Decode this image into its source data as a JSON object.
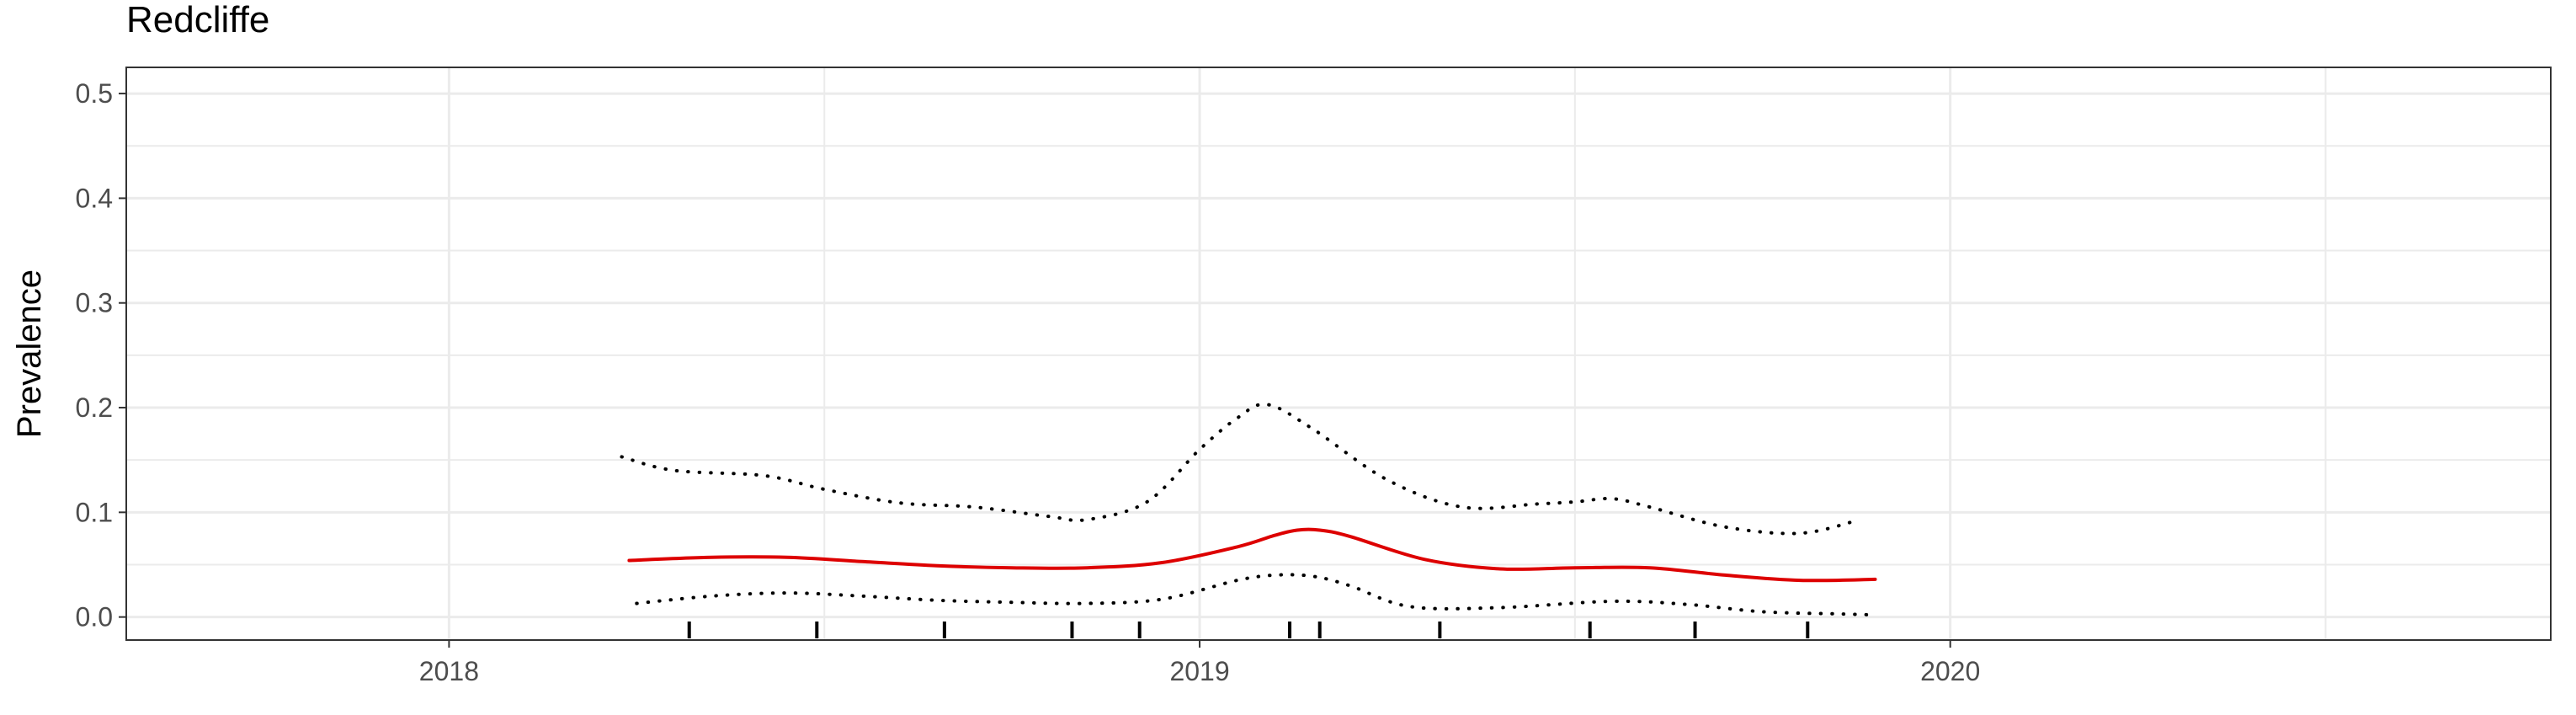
{
  "chart_data": {
    "type": "line",
    "title": "Redcliffe",
    "xlabel": "",
    "ylabel": "Prevalence",
    "xlim": [
      2017.57,
      2020.8
    ],
    "ylim": [
      -0.022,
      0.525
    ],
    "x_ticks": [
      2018,
      2019,
      2020
    ],
    "x_tick_labels": [
      "2018",
      "2019",
      "2020"
    ],
    "y_ticks": [
      0.0,
      0.1,
      0.2,
      0.3,
      0.4,
      0.5
    ],
    "y_tick_labels": [
      "0.0",
      "0.1",
      "0.2",
      "0.3",
      "0.4",
      "0.5"
    ],
    "grid": true,
    "legend": "none",
    "colors": {
      "estimate": "#dd0000",
      "interval": "#000000",
      "grid": "#ebebeb",
      "panel_border": "#333333"
    },
    "series": [
      {
        "role": "estimate",
        "style": "solid",
        "x": [
          2018.24,
          2018.35,
          2018.45,
          2018.55,
          2018.65,
          2018.75,
          2018.85,
          2018.95,
          2019.05,
          2019.1,
          2019.13,
          2019.16,
          2019.2,
          2019.3,
          2019.4,
          2019.5,
          2019.6,
          2019.7,
          2019.8,
          2019.9
        ],
        "y": [
          0.054,
          0.057,
          0.057,
          0.053,
          0.049,
          0.047,
          0.047,
          0.052,
          0.067,
          0.078,
          0.083,
          0.083,
          0.077,
          0.055,
          0.046,
          0.047,
          0.047,
          0.04,
          0.035,
          0.036
        ]
      },
      {
        "role": "upper",
        "style": "dotted",
        "x": [
          2018.23,
          2018.3,
          2018.42,
          2018.5,
          2018.6,
          2018.7,
          2018.8,
          2018.85,
          2018.93,
          2019.0,
          2019.05,
          2019.09,
          2019.15,
          2019.25,
          2019.35,
          2019.45,
          2019.5,
          2019.55,
          2019.6,
          2019.7,
          2019.8,
          2019.88
        ],
        "y": [
          0.153,
          0.14,
          0.135,
          0.122,
          0.109,
          0.105,
          0.096,
          0.093,
          0.11,
          0.16,
          0.19,
          0.203,
          0.18,
          0.131,
          0.105,
          0.108,
          0.11,
          0.113,
          0.105,
          0.086,
          0.08,
          0.093
        ]
      },
      {
        "role": "lower",
        "style": "dotted",
        "x": [
          2018.25,
          2018.35,
          2018.45,
          2018.55,
          2018.65,
          2018.75,
          2018.85,
          2018.95,
          2019.05,
          2019.1,
          2019.15,
          2019.2,
          2019.28,
          2019.4,
          2019.55,
          2019.65,
          2019.75,
          2019.85,
          2019.9
        ],
        "y": [
          0.013,
          0.02,
          0.023,
          0.02,
          0.016,
          0.014,
          0.013,
          0.017,
          0.035,
          0.04,
          0.039,
          0.03,
          0.01,
          0.009,
          0.015,
          0.012,
          0.005,
          0.003,
          0.002
        ]
      }
    ],
    "rug_x": [
      2018.32,
      2018.49,
      2018.66,
      2018.83,
      2018.92,
      2019.12,
      2019.16,
      2019.32,
      2019.52,
      2019.66,
      2019.81
    ]
  }
}
